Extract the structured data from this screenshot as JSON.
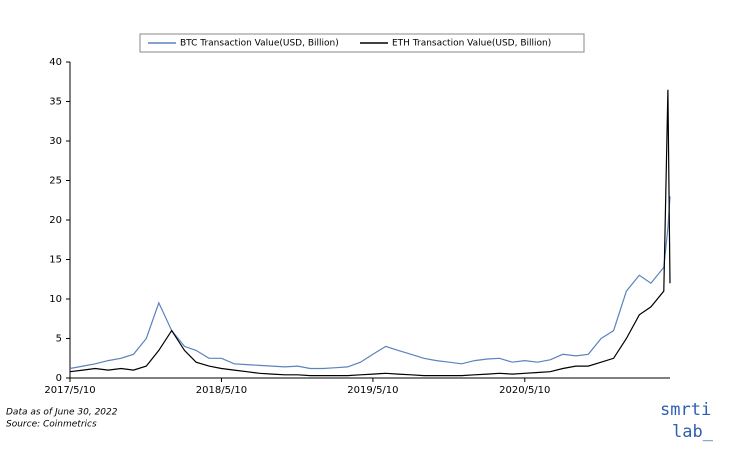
{
  "chart_data": {
    "type": "line",
    "x": [
      "2017/5/10",
      "2017/6/10",
      "2017/7/10",
      "2017/8/10",
      "2017/9/10",
      "2017/10/10",
      "2017/11/10",
      "2017/12/10",
      "2018/1/10",
      "2018/2/10",
      "2018/3/10",
      "2018/4/10",
      "2018/5/10",
      "2018/6/10",
      "2018/7/10",
      "2018/8/10",
      "2018/9/10",
      "2018/10/10",
      "2018/11/10",
      "2018/12/10",
      "2019/1/10",
      "2019/2/10",
      "2019/3/10",
      "2019/4/10",
      "2019/5/10",
      "2019/6/10",
      "2019/7/10",
      "2019/8/10",
      "2019/9/10",
      "2019/10/10",
      "2019/11/10",
      "2019/12/10",
      "2020/1/10",
      "2020/2/10",
      "2020/3/10",
      "2020/4/10",
      "2020/5/10",
      "2020/6/10",
      "2020/7/10",
      "2020/8/10",
      "2020/9/10",
      "2020/10/10",
      "2020/11/10",
      "2020/12/10",
      "2021/1/10",
      "2021/2/10",
      "2021/3/10",
      "2021/4/10",
      "2021/4/20",
      "2021/4/25"
    ],
    "series": [
      {
        "name": "BTC Transaction Value(USD, Billion)",
        "color": "#5b82bf",
        "values": [
          1.2,
          1.5,
          1.8,
          2.2,
          2.5,
          3,
          5,
          9.5,
          6,
          4,
          3.5,
          2.5,
          2.5,
          1.8,
          1.7,
          1.6,
          1.5,
          1.4,
          1.5,
          1.2,
          1.2,
          1.3,
          1.4,
          2,
          3,
          4,
          3.5,
          3,
          2.5,
          2.2,
          2,
          1.8,
          2.2,
          2.4,
          2.5,
          2,
          2.2,
          2,
          2.3,
          3,
          2.8,
          3,
          5,
          6,
          11,
          13,
          12,
          14,
          19,
          23
        ]
      },
      {
        "name": "ETH Transaction Value(USD, Billion)",
        "color": "#000000",
        "values": [
          0.8,
          1,
          1.2,
          1,
          1.2,
          1,
          1.5,
          3.5,
          6,
          3.5,
          2,
          1.5,
          1.2,
          1,
          0.8,
          0.6,
          0.5,
          0.4,
          0.4,
          0.3,
          0.3,
          0.3,
          0.3,
          0.4,
          0.5,
          0.6,
          0.5,
          0.4,
          0.3,
          0.3,
          0.3,
          0.3,
          0.4,
          0.5,
          0.6,
          0.5,
          0.6,
          0.7,
          0.8,
          1.2,
          1.5,
          1.5,
          2,
          2.5,
          5,
          8,
          9,
          11,
          36.5,
          12
        ]
      }
    ],
    "xlim": [
      "2017/5/10",
      "2021/4/25"
    ],
    "xticks": [
      "2017/5/10",
      "2018/5/10",
      "2019/5/10",
      "2020/5/10"
    ],
    "ylim": [
      0,
      40
    ],
    "yticks": [
      0,
      5,
      10,
      15,
      20,
      25,
      30,
      35,
      40
    ],
    "legend": "top",
    "notes": [
      "Data as of June 30, 2022",
      "Source: Coinmetrics"
    ],
    "logo": [
      "smrti",
      "lab_"
    ]
  }
}
